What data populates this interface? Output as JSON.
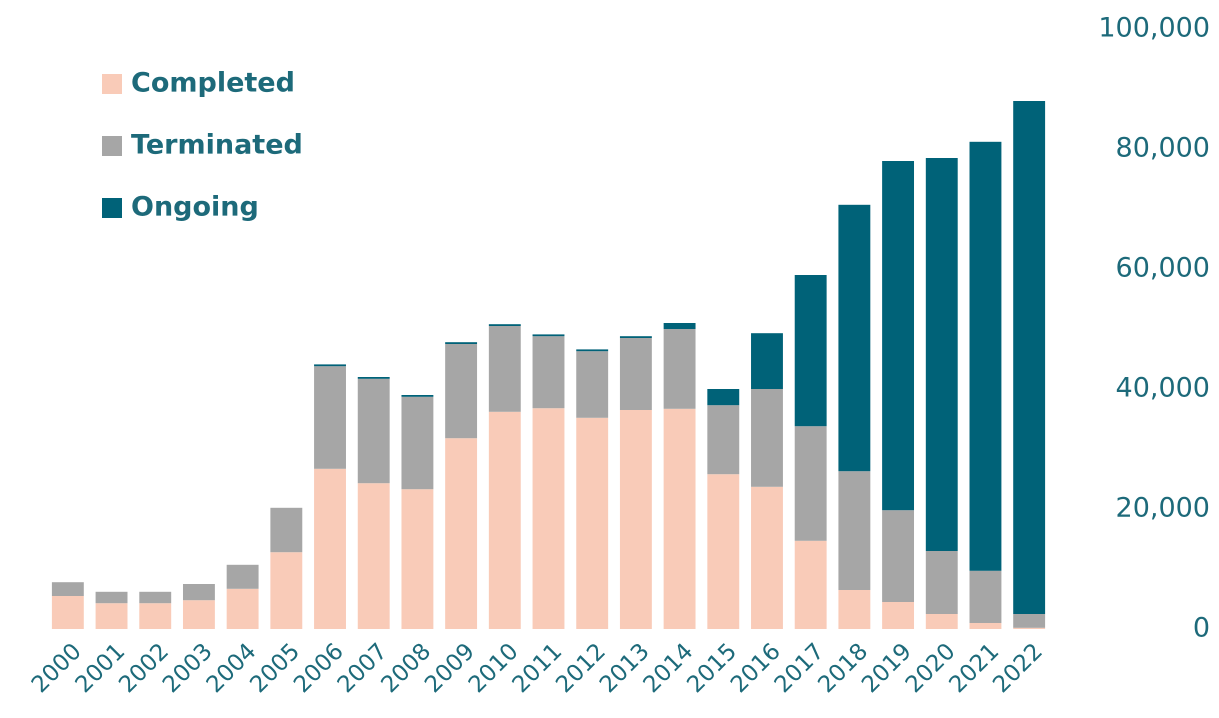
{
  "chart_data": {
    "type": "stacked_bar",
    "categories": [
      "2000",
      "2001",
      "2002",
      "2003",
      "2004",
      "2005",
      "2006",
      "2007",
      "2008",
      "2009",
      "2010",
      "2011",
      "2012",
      "2013",
      "2014",
      "2015",
      "2016",
      "2017",
      "2018",
      "2019",
      "2020",
      "2021",
      "2022"
    ],
    "series": [
      {
        "name": "Completed",
        "color": "#f9cbb8",
        "values": [
          5.5,
          4.3,
          4.3,
          4.8,
          6.7,
          12.8,
          26.7,
          24.3,
          23.3,
          31.8,
          36.2,
          36.8,
          35.2,
          36.5,
          36.7,
          25.8,
          23.7,
          14.7,
          6.5,
          4.5,
          2.5,
          1.0,
          0.2
        ]
      },
      {
        "name": "Terminated",
        "color": "#a6a6a6",
        "values": [
          2.3,
          1.9,
          1.9,
          2.7,
          4.0,
          7.4,
          17.1,
          17.4,
          15.4,
          15.7,
          14.3,
          12.0,
          11.1,
          12.0,
          13.3,
          11.5,
          16.3,
          19.1,
          19.8,
          15.3,
          10.5,
          8.7,
          2.3
        ]
      },
      {
        "name": "Ongoing",
        "color": "#006278",
        "values": [
          0,
          0,
          0,
          0,
          0,
          0,
          0.3,
          0.3,
          0.3,
          0.3,
          0.3,
          0.3,
          0.3,
          0.3,
          1.0,
          2.7,
          9.3,
          25.2,
          44.4,
          58.2,
          65.5,
          71.5,
          85.5
        ]
      }
    ],
    "ylim": [
      0,
      100
    ],
    "yticks": [
      0,
      {
        "value": 20,
        "label": "20,000"
      },
      {
        "value": 40,
        "label": "40,000"
      },
      {
        "value": 60,
        "label": "60,000"
      },
      {
        "value": 80,
        "label": "80,000"
      },
      {
        "value": 100,
        "label": "100,000"
      }
    ],
    "grid": false,
    "legend": "top-left"
  }
}
